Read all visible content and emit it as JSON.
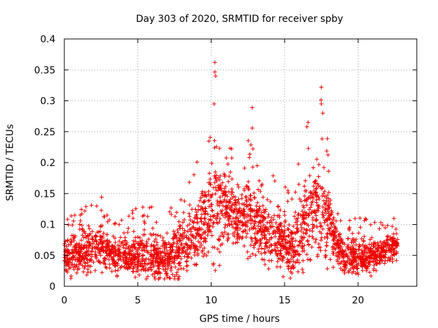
{
  "chart_data": {
    "type": "scatter",
    "title": "Day 303 of 2020, SRMTID for receiver spby",
    "xlabel": "GPS time / hours",
    "ylabel": "SRMTID / TECUs",
    "xlim": [
      0,
      24
    ],
    "ylim": [
      0,
      0.4
    ],
    "xticks": [
      0,
      5,
      10,
      15,
      20
    ],
    "xtick_labels": [
      "0",
      "5",
      "10",
      "15",
      "20"
    ],
    "yticks": [
      0,
      0.05,
      0.1,
      0.15,
      0.2,
      0.25,
      0.3,
      0.35,
      0.4
    ],
    "ytick_labels": [
      "0",
      "0.05",
      "0.1",
      "0.15",
      "0.2",
      "0.25",
      "0.3",
      "0.35",
      "0.4"
    ],
    "grid": true,
    "legend": "none",
    "marker": "+",
    "color": "#ee0000",
    "x_data_end": 22.7,
    "note": "Dense scatter of several thousand points; values represented by an approximate envelope profile (hour, typical median, typical upper).",
    "profile": [
      [
        0.0,
        0.05,
        0.085
      ],
      [
        1.0,
        0.055,
        0.1
      ],
      [
        2.0,
        0.06,
        0.11
      ],
      [
        2.5,
        0.065,
        0.12
      ],
      [
        3.0,
        0.055,
        0.1
      ],
      [
        4.0,
        0.05,
        0.09
      ],
      [
        5.0,
        0.05,
        0.1
      ],
      [
        6.0,
        0.05,
        0.1
      ],
      [
        7.0,
        0.045,
        0.09
      ],
      [
        8.0,
        0.06,
        0.12
      ],
      [
        9.0,
        0.09,
        0.16
      ],
      [
        9.5,
        0.11,
        0.19
      ],
      [
        10.0,
        0.13,
        0.22
      ],
      [
        10.3,
        0.15,
        0.3
      ],
      [
        11.0,
        0.13,
        0.2
      ],
      [
        12.0,
        0.11,
        0.17
      ],
      [
        12.7,
        0.11,
        0.2
      ],
      [
        13.5,
        0.09,
        0.15
      ],
      [
        14.5,
        0.08,
        0.14
      ],
      [
        15.5,
        0.06,
        0.12
      ],
      [
        16.5,
        0.1,
        0.2
      ],
      [
        17.0,
        0.12,
        0.22
      ],
      [
        17.5,
        0.13,
        0.24
      ],
      [
        18.0,
        0.1,
        0.18
      ],
      [
        18.5,
        0.07,
        0.12
      ],
      [
        19.0,
        0.05,
        0.09
      ],
      [
        20.0,
        0.05,
        0.09
      ],
      [
        21.0,
        0.05,
        0.085
      ],
      [
        22.0,
        0.06,
        0.09
      ],
      [
        22.7,
        0.07,
        0.1
      ]
    ],
    "peaks": [
      {
        "x": 10.25,
        "y": 0.362
      },
      {
        "x": 10.3,
        "y": 0.34
      },
      {
        "x": 10.2,
        "y": 0.295
      },
      {
        "x": 12.8,
        "y": 0.289
      },
      {
        "x": 12.8,
        "y": 0.256
      },
      {
        "x": 16.6,
        "y": 0.265
      },
      {
        "x": 17.5,
        "y": 0.322
      },
      {
        "x": 17.5,
        "y": 0.295
      },
      {
        "x": 17.6,
        "y": 0.28
      }
    ]
  }
}
